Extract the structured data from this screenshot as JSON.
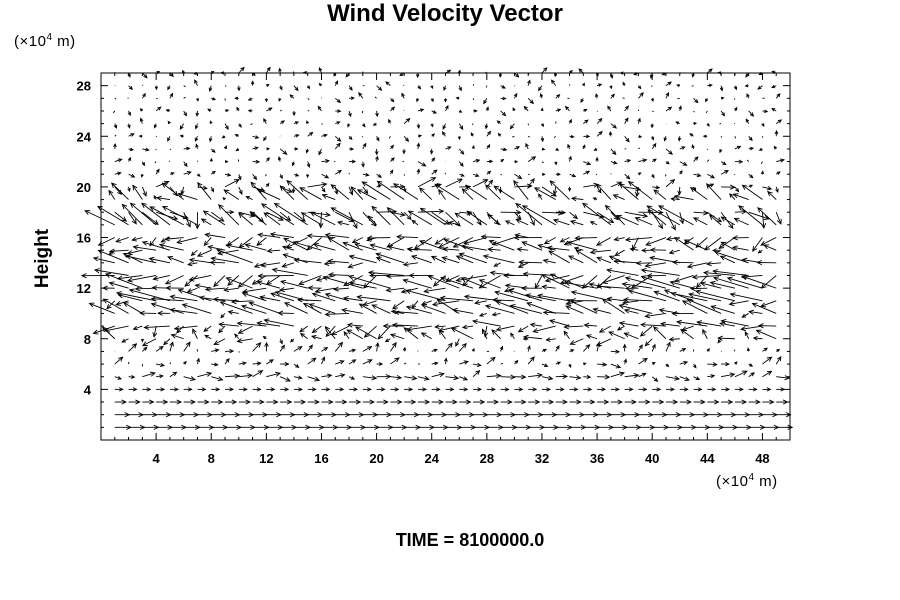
{
  "chart_data": {
    "type": "vector_field",
    "title": "Wind Velocity Vector",
    "ylabel": "Height",
    "xlabel": "",
    "x_unit": {
      "prefix": "(×10",
      "exp": "4",
      "suffix": " m)"
    },
    "y_unit": {
      "prefix": "(×10",
      "exp": "4",
      "suffix": " m)"
    },
    "xlim": [
      0,
      50
    ],
    "ylim": [
      0,
      29
    ],
    "x_ticks": [
      4,
      8,
      12,
      16,
      20,
      24,
      28,
      32,
      36,
      40,
      44,
      48
    ],
    "y_ticks": [
      4,
      8,
      12,
      16,
      20,
      24,
      28
    ],
    "x_tick_labels": [
      "4",
      "8",
      "12",
      "16",
      "20",
      "24",
      "28",
      "32",
      "36",
      "40",
      "44",
      "48"
    ],
    "y_tick_labels": [
      "4",
      "8",
      "12",
      "16",
      "20",
      "24",
      "28"
    ],
    "grid": false,
    "arrow_color": "#000000",
    "vector_rows": [
      {
        "y": 1,
        "u": 2.0,
        "v": 0.0
      },
      {
        "y": 2,
        "u": 1.8,
        "v": 0.0
      },
      {
        "y": 3,
        "u": 1.4,
        "v": 0.0
      },
      {
        "y": 4,
        "u": 1.0,
        "v": 0.0
      },
      {
        "y": 5,
        "u": 1.2,
        "v": 0.1
      },
      {
        "y": 6,
        "u": 0.6,
        "v": 0.2
      },
      {
        "y": 7,
        "u": 0.5,
        "v": 0.5
      },
      {
        "y": 8,
        "u": -1.2,
        "v": 0.3
      },
      {
        "y": 9,
        "u": -2.0,
        "v": -0.4
      },
      {
        "y": 10,
        "u": -2.6,
        "v": 0.6
      },
      {
        "y": 11,
        "u": -3.0,
        "v": 0.2
      },
      {
        "y": 12,
        "u": -3.2,
        "v": 0.6
      },
      {
        "y": 13,
        "u": -3.0,
        "v": -0.4
      },
      {
        "y": 14,
        "u": -2.6,
        "v": 0.6
      },
      {
        "y": 15,
        "u": -2.2,
        "v": 0.4
      },
      {
        "y": 16,
        "u": -2.0,
        "v": -0.6
      },
      {
        "y": 17,
        "u": -2.5,
        "v": 1.5
      },
      {
        "y": 18,
        "u": 1.5,
        "v": -1.0
      },
      {
        "y": 19,
        "u": -1.8,
        "v": 1.2
      },
      {
        "y": 20,
        "u": 1.2,
        "v": 0.0
      },
      {
        "y": 21,
        "u": 0.4,
        "v": 0.0
      },
      {
        "y": 22,
        "u": 0.4,
        "v": 0.0
      },
      {
        "y": 23,
        "u": 0.25,
        "v": 0.0
      },
      {
        "y": 24,
        "u": 0.15,
        "v": 0.0
      },
      {
        "y": 25,
        "u": 0.1,
        "v": 0.0
      },
      {
        "y": 26,
        "u": 0.08,
        "v": 0.0
      },
      {
        "y": 27,
        "u": 0.06,
        "v": 0.0
      },
      {
        "y": 28,
        "u": 0.05,
        "v": 0.0
      },
      {
        "y": 29,
        "u": 0.05,
        "v": 0.0
      }
    ],
    "x_spacing": 1.0
  },
  "footer": {
    "time_label": "TIME = 8100000.0"
  }
}
